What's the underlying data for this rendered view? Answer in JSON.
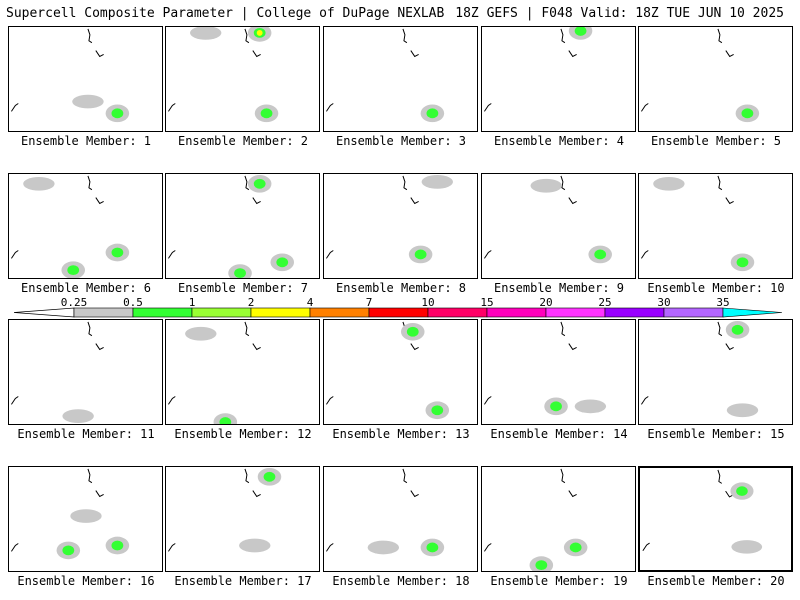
{
  "header": {
    "title": "Supercell Composite Parameter | College of DuPage NEXLAB",
    "run_info": "18Z GEFS | F048 Valid: 18Z TUE JUN 10 2025"
  },
  "colorbar": {
    "ticks": [
      "0.25",
      "0.5",
      "1",
      "2",
      "4",
      "7",
      "10",
      "15",
      "20",
      "25",
      "30",
      "35"
    ],
    "colors": [
      "#c8c8c8",
      "#33ff33",
      "#99ff33",
      "#ffff00",
      "#ff8000",
      "#ff0000",
      "#ff0066",
      "#ff00bb",
      "#ff33ff",
      "#9900ff",
      "#b366ff",
      "#00ffff"
    ]
  },
  "panels": [
    {
      "label": "Ensemble Member: 1"
    },
    {
      "label": "Ensemble Member: 2"
    },
    {
      "label": "Ensemble Member: 3"
    },
    {
      "label": "Ensemble Member: 4"
    },
    {
      "label": "Ensemble Member: 5"
    },
    {
      "label": "Ensemble Member: 6"
    },
    {
      "label": "Ensemble Member: 7"
    },
    {
      "label": "Ensemble Member: 8"
    },
    {
      "label": "Ensemble Member: 9"
    },
    {
      "label": "Ensemble Member: 10"
    },
    {
      "label": "Ensemble Member: 11"
    },
    {
      "label": "Ensemble Member: 12"
    },
    {
      "label": "Ensemble Member: 13"
    },
    {
      "label": "Ensemble Member: 14"
    },
    {
      "label": "Ensemble Member: 15"
    },
    {
      "label": "Ensemble Member: 16"
    },
    {
      "label": "Ensemble Member: 17"
    },
    {
      "label": "Ensemble Member: 18"
    },
    {
      "label": "Ensemble Member: 19"
    },
    {
      "label": "Ensemble Member: 20"
    }
  ]
}
